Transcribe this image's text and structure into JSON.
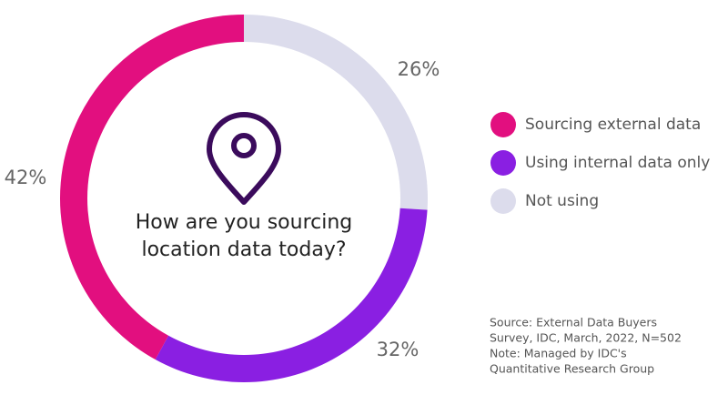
{
  "chart_data": {
    "type": "donut",
    "series": [
      {
        "name": "Sourcing external data",
        "color": "#e20f7f",
        "values": [
          42
        ],
        "value_labels": [
          "42%"
        ]
      },
      {
        "name": "Using internal data only",
        "color": "#8a1fe2",
        "values": [
          32
        ],
        "value_labels": [
          "32%"
        ]
      },
      {
        "name": "Not using",
        "color": "#dcdcec",
        "values": [
          26
        ],
        "value_labels": [
          "26%"
        ]
      }
    ],
    "center_text": [
      "How are you sourcing",
      "location data today?"
    ],
    "legend": "right",
    "note": [
      "Source: External Data Buyers",
      "Survey, IDC, March, 2022, N=502",
      "Note: Managed by IDC's",
      "Quantitative Research Group"
    ]
  }
}
